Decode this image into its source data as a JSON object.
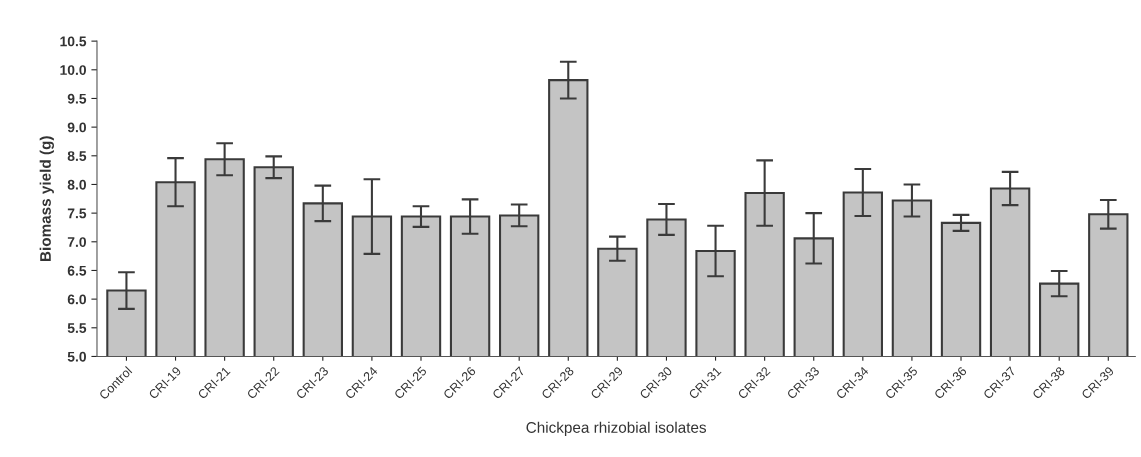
{
  "chart_data": {
    "type": "bar",
    "xlabel": "Chickpea rhizobial isolates",
    "ylabel": "Biomass yield (g)",
    "categories": [
      "Control",
      "CRI-19",
      "CRI-21",
      "CRI-22",
      "CRI-23",
      "CRI-24",
      "CRI-25",
      "CRI-26",
      "CRI-27",
      "CRI-28",
      "CRI-29",
      "CRI-30",
      "CRI-31",
      "CRI-32",
      "CRI-33",
      "CRI-34",
      "CRI-35",
      "CRI-36",
      "CRI-37",
      "CRI-38",
      "CRI-39"
    ],
    "values": [
      6.15,
      8.04,
      8.44,
      8.3,
      7.67,
      7.44,
      7.44,
      7.44,
      7.46,
      9.82,
      6.88,
      7.39,
      6.84,
      7.85,
      7.06,
      7.86,
      7.72,
      7.33,
      7.93,
      6.27,
      7.48
    ],
    "errors": [
      0.32,
      0.42,
      0.28,
      0.19,
      0.31,
      0.65,
      0.18,
      0.3,
      0.19,
      0.32,
      0.21,
      0.27,
      0.44,
      0.57,
      0.44,
      0.41,
      0.28,
      0.14,
      0.29,
      0.22,
      0.25
    ],
    "color": "#c4c4c4",
    "ylim": [
      5.0,
      10.5
    ],
    "yticks": [
      {
        "value": 5.0,
        "label": "5.0"
      },
      {
        "value": 5.5,
        "label": "5.5"
      },
      {
        "value": 6.0,
        "label": "6.0"
      },
      {
        "value": 6.5,
        "label": "6.5"
      },
      {
        "value": 7.0,
        "label": "7.0"
      },
      {
        "value": 7.5,
        "label": "7.5"
      },
      {
        "value": 8.0,
        "label": "8.0"
      },
      {
        "value": 8.5,
        "label": "8.5"
      },
      {
        "value": 9.0,
        "label": "9.0"
      },
      {
        "value": 9.5,
        "label": "9.5"
      },
      {
        "value": 10.0,
        "label": "10.0"
      },
      {
        "value": 10.5,
        "label": "10.5"
      }
    ],
    "grid": false,
    "legend": false
  }
}
